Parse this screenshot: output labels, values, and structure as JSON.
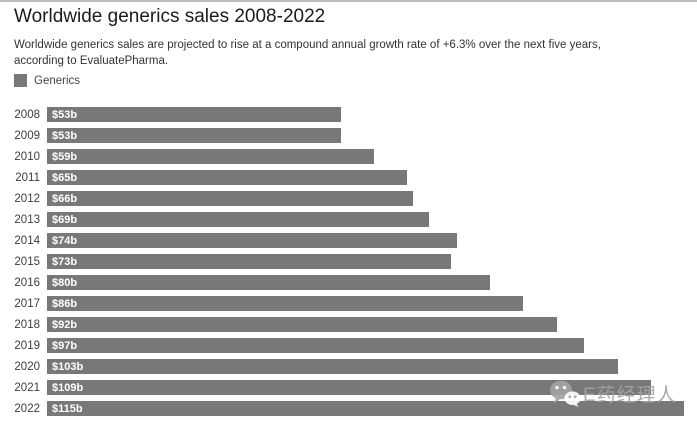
{
  "header": {
    "title": "Worldwide generics sales 2008-2022",
    "subtitle": "Worldwide generics sales are projected to rise at a compound annual growth rate of +6.3% over the next five years, according to EvaluatePharma."
  },
  "legend": {
    "label": "Generics",
    "swatch_color": "#787878"
  },
  "chart_data": {
    "type": "bar",
    "orientation": "horizontal",
    "title": "Worldwide generics sales 2008-2022",
    "series_name": "Generics",
    "categories": [
      "2008",
      "2009",
      "2010",
      "2011",
      "2012",
      "2013",
      "2014",
      "2015",
      "2016",
      "2017",
      "2018",
      "2019",
      "2020",
      "2021",
      "2022"
    ],
    "values": [
      53,
      53,
      59,
      65,
      66,
      69,
      74,
      73,
      80,
      86,
      92,
      97,
      103,
      109,
      115
    ],
    "value_labels": [
      "$53b",
      "$53b",
      "$59b",
      "$65b",
      "$66b",
      "$69b",
      "$74b",
      "$73b",
      "$80b",
      "$86b",
      "$92b",
      "$97b",
      "$103b",
      "$109b",
      "$115b"
    ],
    "unit": "billion USD",
    "xlabel": "",
    "ylabel": "",
    "xlim": [
      0,
      115
    ],
    "grid": false,
    "bar_color": "#787878",
    "value_label_color": "#ffffff",
    "legend_position": "top-left"
  },
  "watermark": {
    "text": "E药经理人",
    "icon": "wechat-icon",
    "color": "#a3a3a3"
  }
}
